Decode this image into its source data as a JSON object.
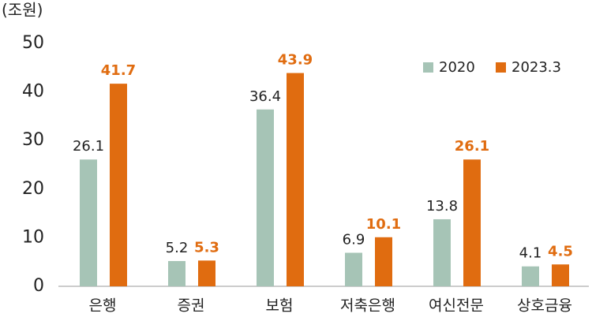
{
  "chart_data": {
    "type": "bar",
    "unit": "(조원)",
    "categories": [
      "은행",
      "증권",
      "보험",
      "저축은행",
      "여신전문",
      "상호금융"
    ],
    "series": [
      {
        "name": "2020",
        "color": "#a6c4b6",
        "values": [
          26.1,
          5.2,
          36.4,
          6.9,
          13.8,
          4.1
        ]
      },
      {
        "name": "2023.3",
        "color": "#e06c10",
        "values": [
          41.7,
          5.3,
          43.9,
          10.1,
          26.1,
          4.5
        ]
      }
    ],
    "ylim": [
      0,
      50
    ],
    "yticks": [
      0,
      10,
      20,
      30,
      40,
      50
    ],
    "grid": false,
    "legend": "top-right"
  }
}
